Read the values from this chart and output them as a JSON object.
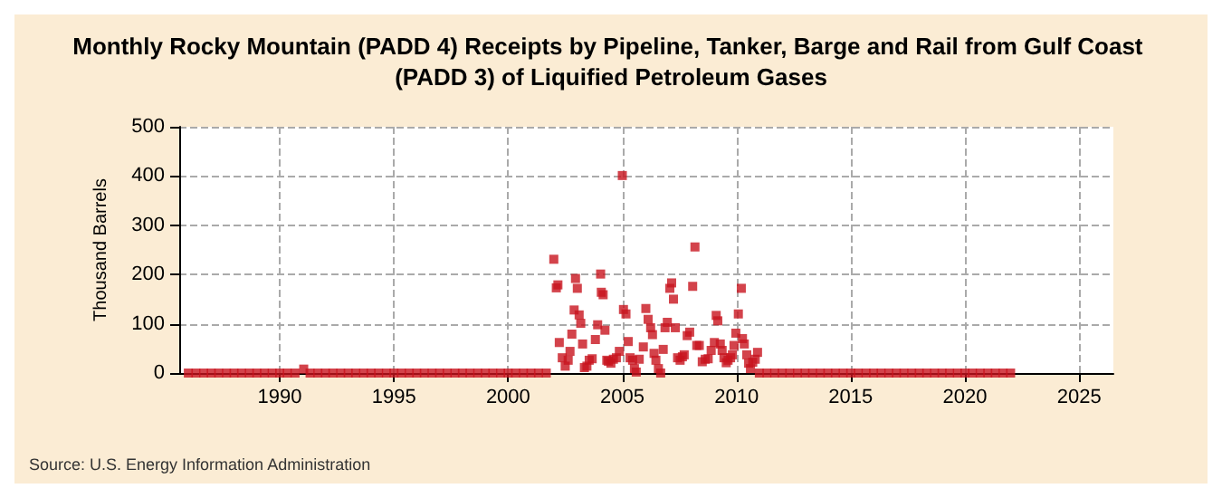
{
  "chart_data": {
    "type": "scatter",
    "title": "Monthly Rocky Mountain (PADD 4) Receipts by Pipeline, Tanker, Barge and Rail from Gulf Coast (PADD 3) of Liquified Petroleum Gases",
    "ylabel": "Thousand Barrels",
    "annotations": [
      "Source: U.S. Energy Information Administration"
    ],
    "xlim": [
      1985.6,
      2026.5
    ],
    "xticks": [
      1990,
      1995,
      2000,
      2005,
      2010,
      2015,
      2020,
      2025
    ],
    "ylim": [
      0,
      500
    ],
    "yticks": [
      0,
      100,
      200,
      300,
      400,
      500
    ],
    "grid": true,
    "marker": "square",
    "series": [
      {
        "color": "#c8141e",
        "x": [
          1986,
          1986.33,
          1986.67,
          1987,
          1987.33,
          1987.67,
          1988,
          1988.33,
          1988.67,
          1989,
          1989.33,
          1989.67,
          1990,
          1990.33,
          1990.67,
          1991.05,
          1991.33,
          1991.67,
          1992,
          1992.33,
          1992.67,
          1993,
          1993.33,
          1993.67,
          1994,
          1994.33,
          1994.67,
          1995,
          1995.33,
          1995.67,
          1996,
          1996.33,
          1996.67,
          1997,
          1997.33,
          1997.67,
          1998,
          1998.33,
          1998.67,
          1999,
          1999.33,
          1999.67,
          2000,
          2000.33,
          2000.67,
          2001,
          2001.33,
          2001.67,
          2002.0,
          2002.11,
          2002.18,
          2002.24,
          2002.37,
          2002.5,
          2002.63,
          2002.71,
          2002.79,
          2002.89,
          2002.95,
          2003.03,
          2003.11,
          2003.18,
          2003.26,
          2003.34,
          2003.45,
          2003.55,
          2003.68,
          2003.82,
          2003.92,
          2004.05,
          2004.08,
          2004.16,
          2004.24,
          2004.32,
          2004.39,
          2004.5,
          2004.61,
          2004.74,
          2004.87,
          2005.0,
          2005.05,
          2005.16,
          2005.26,
          2005.34,
          2005.45,
          2005.53,
          2005.61,
          2005.74,
          2005.92,
          2006.03,
          2006.13,
          2006.24,
          2006.32,
          2006.39,
          2006.47,
          2006.58,
          2006.68,
          2006.79,
          2006.87,
          2006.97,
          2007.08,
          2007.16,
          2007.24,
          2007.32,
          2007.42,
          2007.53,
          2007.63,
          2007.71,
          2007.84,
          2007.95,
          2008.08,
          2008.18,
          2008.26,
          2008.37,
          2008.5,
          2008.63,
          2008.76,
          2008.89,
          2009.03,
          2009.11,
          2009.18,
          2009.29,
          2009.37,
          2009.45,
          2009.55,
          2009.63,
          2009.74,
          2009.82,
          2009.89,
          2009.97,
          2010.08,
          2010.21,
          2010.26,
          2010.34,
          2010.45,
          2010.53,
          2010.61,
          2010.71,
          2010.82,
          2010.92,
          2011,
          2011.33,
          2011.67,
          2012,
          2012.33,
          2012.67,
          2013,
          2013.33,
          2013.67,
          2014,
          2014.33,
          2014.67,
          2015,
          2015.33,
          2015.67,
          2016,
          2016.33,
          2016.67,
          2017,
          2017.33,
          2017.67,
          2018,
          2018.33,
          2018.67,
          2019,
          2019.33,
          2019.67,
          2020,
          2020.33,
          2020.67,
          2021,
          2021.33,
          2021.67,
          2022
        ],
        "values": [
          0,
          0,
          0,
          0,
          0,
          0,
          0,
          0,
          0,
          0,
          0,
          0,
          0,
          0,
          0,
          8,
          0,
          0,
          0,
          0,
          0,
          0,
          0,
          0,
          0,
          0,
          0,
          0,
          0,
          0,
          0,
          0,
          0,
          0,
          0,
          0,
          0,
          0,
          0,
          0,
          0,
          0,
          0,
          0,
          0,
          0,
          0,
          0,
          231,
          173,
          179,
          62,
          31,
          14,
          26,
          44,
          79,
          128,
          192,
          172,
          118,
          101,
          59,
          11,
          14,
          26,
          29,
          68,
          98,
          201,
          164,
          159,
          87,
          26,
          24,
          20,
          28,
          31,
          44,
          401,
          129,
          120,
          64,
          31,
          26,
          9,
          2,
          28,
          53,
          131,
          109,
          92,
          78,
          40,
          26,
          9,
          0,
          48,
          92,
          103,
          172,
          183,
          150,
          92,
          31,
          26,
          33,
          37,
          76,
          83,
          176,
          256,
          56,
          56,
          23,
          28,
          29,
          46,
          62,
          117,
          106,
          59,
          46,
          31,
          21,
          26,
          31,
          37,
          56,
          81,
          120,
          172,
          70,
          59,
          37,
          20,
          9,
          22,
          28,
          42,
          0,
          0,
          0,
          0,
          0,
          0,
          0,
          0,
          0,
          0,
          0,
          0,
          0,
          0,
          0,
          0,
          0,
          0,
          0,
          0,
          0,
          0,
          0,
          0,
          0,
          0,
          0,
          0,
          0,
          0,
          0,
          0,
          0,
          0
        ]
      }
    ]
  }
}
